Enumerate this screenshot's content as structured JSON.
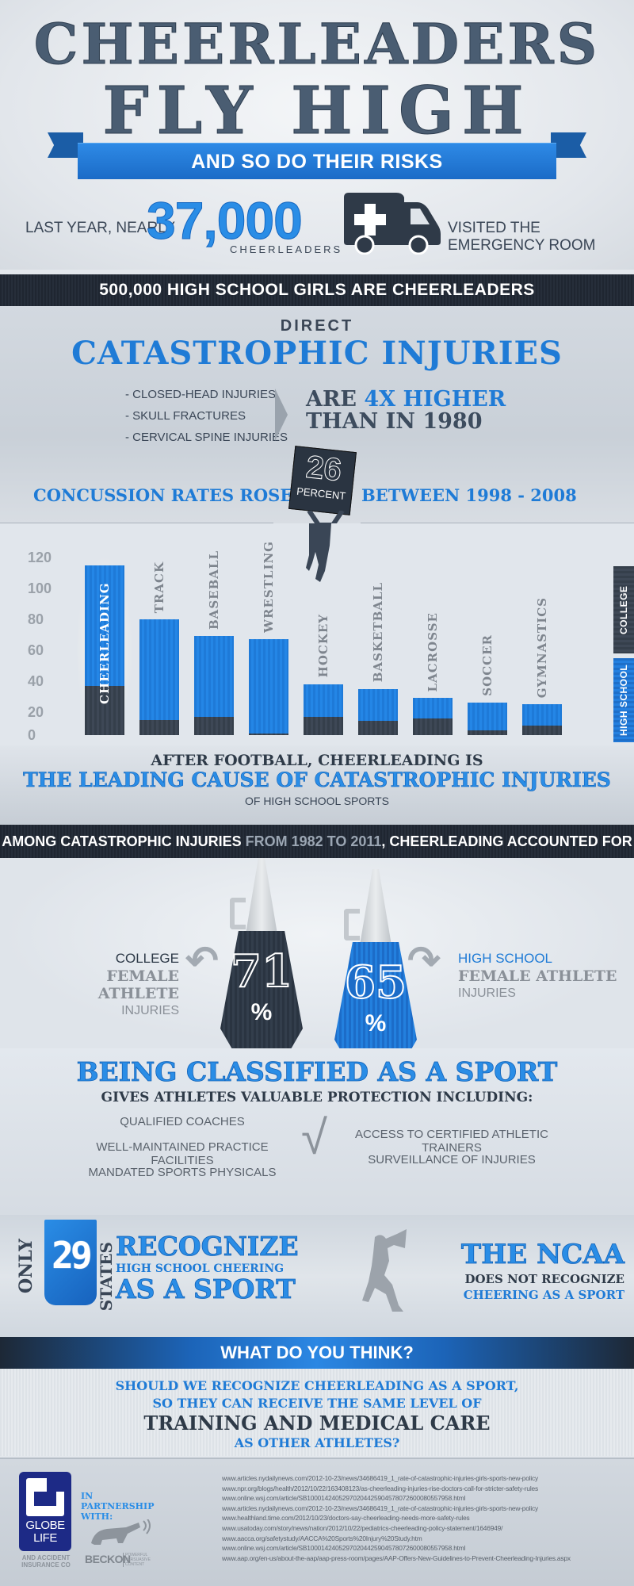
{
  "header": {
    "title_line1": "CHEERLEADERS",
    "title_line2": "FLY HIGH",
    "ribbon": "AND SO DO THEIR RISKS",
    "stat_prefix": "LAST YEAR, NEARLY",
    "stat_number": "37,000",
    "stat_unit": "CHEERLEADERS",
    "stat_suffix": "VISITED THE EMERGENCY ROOM",
    "icon": "ambulance-icon"
  },
  "band1": "500,000 HIGH SCHOOL GIRLS ARE CHEERLEADERS",
  "catastrophic": {
    "eyebrow": "DIRECT",
    "title": "CATASTROPHIC INJURIES",
    "list": [
      "- CLOSED-HEAD INJURIES",
      "- SKULL FRACTURES",
      "- CERVICAL SPINE INJURIES"
    ],
    "higher_prefix": "ARE ",
    "higher_highlight": "4X HIGHER",
    "higher_line2": "THAN IN 1980",
    "concussion_left": "CONCUSSION RATES ROSE",
    "sign_number": "26",
    "sign_label": "PERCENT",
    "concussion_right": "BETWEEN 1998 - 2008"
  },
  "chart_data": {
    "type": "bar",
    "stacked": true,
    "title": "",
    "xlabel": "",
    "ylabel": "",
    "ylim": [
      0,
      120
    ],
    "yticks": [
      0,
      20,
      40,
      60,
      80,
      100,
      120
    ],
    "categories": [
      "CHEERLEADING",
      "TRACK",
      "BASEBALL",
      "WRESTLING",
      "HOCKEY",
      "BASKETBALL",
      "LACROSSE",
      "SOCCER",
      "GYMNASTICS"
    ],
    "series": [
      {
        "name": "COLLEGE",
        "color": "#353f4b",
        "values": [
          32,
          10,
          12,
          1,
          12,
          9,
          11,
          3,
          6
        ]
      },
      {
        "name": "HIGH SCHOOL",
        "color": "#1e7ad8",
        "values": [
          78,
          65,
          52,
          61,
          21,
          21,
          13,
          18,
          14
        ]
      }
    ],
    "totals": [
      110,
      75,
      64,
      62,
      33,
      30,
      24,
      21,
      20
    ],
    "legend": [
      "COLLEGE",
      "HIGH SCHOOL"
    ],
    "legend_position": "right",
    "grid": false
  },
  "leading": {
    "line1": "AFTER FOOTBALL, CHEERLEADING IS",
    "line2": "THE LEADING CAUSE OF CATASTROPHIC INJURIES",
    "line3": "OF HIGH SCHOOL SPORTS"
  },
  "band2": {
    "part1": "AMONG CATASTROPHIC INJURIES ",
    "part2": "FROM 1982 TO 2011",
    "part3": ", CHEERLEADING ACCOUNTED FOR"
  },
  "megaphones": {
    "college": {
      "label1": "COLLEGE",
      "label2": "FEMALE ATHLETE",
      "label3": "INJURIES",
      "value": "71",
      "unit": "%"
    },
    "high_school": {
      "label1": "HIGH SCHOOL",
      "label2": "FEMALE ATHLETE",
      "label3": "INJURIES",
      "value": "65",
      "unit": "%"
    }
  },
  "classified": {
    "title": "BEING CLASSIFIED AS A SPORT",
    "subtitle": "GIVES ATHLETES VALUABLE PROTECTION INCLUDING:",
    "left": [
      "QUALIFIED COACHES",
      "WELL-MAINTAINED PRACTICE FACILITIES",
      "MANDATED SPORTS PHYSICALS"
    ],
    "right": [
      "ACCESS TO CERTIFIED ATHLETIC TRAINERS",
      "SURVEILLANCE OF INJURIES"
    ],
    "check": "√"
  },
  "states": {
    "only": "ONLY",
    "number": "29",
    "states": "STATES",
    "recognize": "RECOGNIZE",
    "hs_cheering": "HIGH SCHOOL CHEERING",
    "as_sport": "AS A SPORT",
    "ncaa": "THE NCAA",
    "ncaa_line2": "DOES NOT RECOGNIZE",
    "ncaa_line3": "CHEERING AS A SPORT"
  },
  "question": {
    "band": "WHAT DO YOU THINK?",
    "line1": "SHOULD WE RECOGNIZE CHEERLEADING AS A SPORT,",
    "line2": "SO THEY CAN RECEIVE THE SAME LEVEL OF",
    "line3": "TRAINING AND MEDICAL CARE",
    "line4": "AS OTHER ATHLETES?"
  },
  "footer": {
    "globe_name1": "GLOBE",
    "globe_name2": "LIFE",
    "globe_sub": "AND ACCIDENT INSURANCE CO",
    "partner": "IN PARTNERSHIP WITH:",
    "beckon": "BECKON",
    "beckon_tag": "POWERFUL PERSUASIVE CONTENT",
    "sources": [
      "www.articles.nydailynews.com/2012-10-23/news/34686419_1_rate-of-catastrophic-injuries-girls-sports-new-policy",
      "www.npr.org/blogs/health/2012/10/22/163408123/as-cheerleading-injuries-rise-doctors-call-for-stricter-safety-rules",
      "www.online.wsj.com/article/SB10001424052970204425904578072600080557958.html",
      "www.articles.nydailynews.com/2012-10-23/news/34686419_1_rate-of-catastrophic-injuries-girls-sports-new-policy",
      "www.healthland.time.com/2012/10/23/doctors-say-cheerleading-needs-more-safety-rules",
      "www.usatoday.com/story/news/nation/2012/10/22/pediatrics-cheerleading-policy-statement/1646949/",
      "www.aacca.org/safetystudy/AACCA%20Sports%20Injury%20Study.htm",
      "www.online.wsj.com/article/SB10001424052970204425904578072600080557958.html",
      "www.aap.org/en-us/about-the-aap/aap-press-room/pages/AAP-Offers-New-Guidelines-to-Prevent-Cheerleading-Injuries.aspx"
    ]
  },
  "colors": {
    "accent_blue": "#1f7bd6",
    "dark_navy": "#2a3441",
    "slate_title": "#4a5d72",
    "background": "#e3e7ec"
  }
}
